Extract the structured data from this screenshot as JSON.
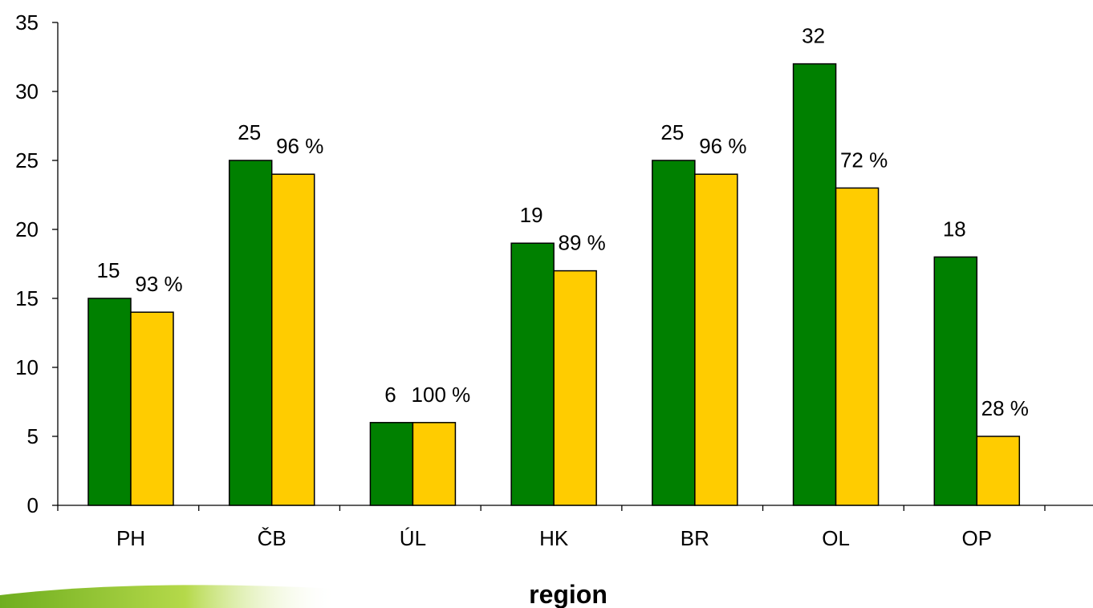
{
  "colors": {
    "series_1": "#008000",
    "series_2": "#FFCC00",
    "axis": "#000000",
    "decor_leaf": "#9ACD32"
  },
  "chart_data": {
    "type": "bar",
    "categories": [
      "PH",
      "ČB",
      "ÚL",
      "HK",
      "BR",
      "OL",
      "OP"
    ],
    "series": [
      {
        "values": [
          15,
          25,
          6,
          19,
          25,
          32,
          18
        ],
        "labels": [
          "15",
          "25",
          "6",
          "19",
          "25",
          "32",
          "18"
        ]
      },
      {
        "values": [
          14,
          24,
          6,
          17,
          24,
          23,
          5
        ],
        "labels": [
          "93 %",
          "96 %",
          "100 %",
          "89 %",
          "96 %",
          "72 %",
          "28 %"
        ]
      }
    ],
    "xlabel": "region",
    "ylabel": "",
    "ylim": [
      0,
      35
    ],
    "yticks": [
      "0",
      "5",
      "10",
      "15",
      "20",
      "25",
      "30",
      "35"
    ],
    "grid": false,
    "legend": "none"
  }
}
